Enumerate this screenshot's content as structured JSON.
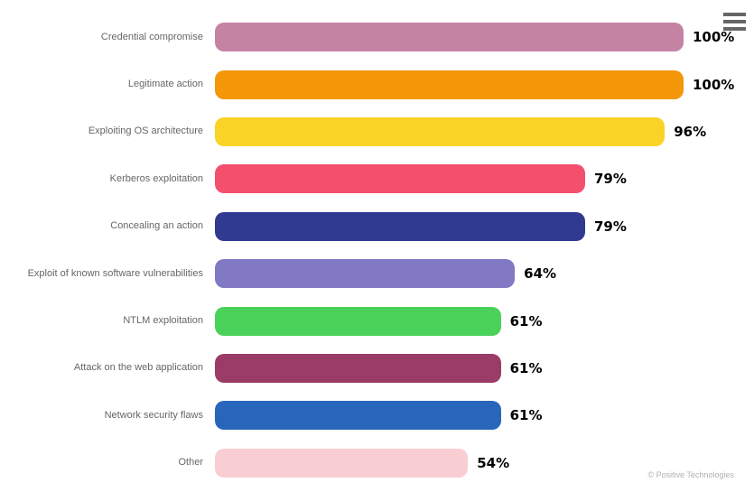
{
  "chart": {
    "menu_icon": "hamburger-menu",
    "credits": "© Positive Technologies",
    "background": "#ffffff"
  },
  "chart_data": {
    "type": "bar",
    "orientation": "horizontal",
    "title": "",
    "xlabel": "",
    "ylabel": "",
    "categories": [
      "Credential compromise",
      "Legitimate action",
      "Exploiting OS architecture",
      "Kerberos exploitation",
      "Concealing an action",
      "Exploit of known software vulnerabilities",
      "NTLM exploitation",
      "Attack on the web application",
      "Network security flaws",
      "Other"
    ],
    "values": [
      100,
      100,
      96,
      79,
      79,
      64,
      61,
      61,
      61,
      54
    ],
    "value_labels": [
      "100%",
      "100%",
      "96%",
      "79%",
      "79%",
      "64%",
      "61%",
      "61%",
      "61%",
      "54%"
    ],
    "colors": [
      "#c583a4",
      "#f49708",
      "#f9d325",
      "#f4506e",
      "#2f3a90",
      "#8179c3",
      "#49d15a",
      "#9a3c67",
      "#2766ba",
      "#f9ced3"
    ],
    "xlim": [
      0,
      100
    ],
    "grid": false,
    "legend": false,
    "axis_lines": false,
    "label_color": "#666666",
    "value_label_color": "#000000"
  }
}
